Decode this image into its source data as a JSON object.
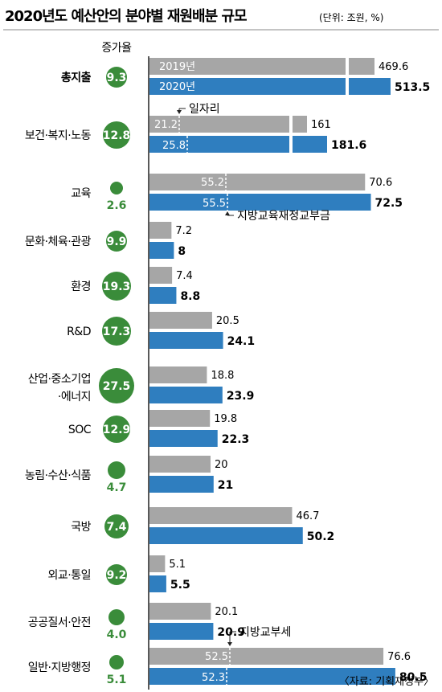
{
  "chart_data": {
    "type": "bar",
    "title": "2020년도 예산안의 분야별 재원배분 규모",
    "unit": "(단위: 조원, %)",
    "rate_header": "증가율",
    "source": "〈자료: 기획재정부〉",
    "colors": {
      "y2019": "#a6a6a6",
      "y2020": "#2f7ebf",
      "rate": "#3a8c3a",
      "rate_text": "#3a8c3a"
    },
    "series": [
      {
        "name": "2019년",
        "values": [
          469.6,
          161,
          70.6,
          7.2,
          7.4,
          20.5,
          18.8,
          19.8,
          20,
          46.7,
          5.1,
          20.1,
          76.6
        ]
      },
      {
        "name": "2020년",
        "values": [
          513.5,
          181.6,
          72.5,
          8,
          8.8,
          24.1,
          23.9,
          22.3,
          21,
          50.2,
          5.5,
          20.9,
          80.5
        ]
      }
    ],
    "categories": [
      {
        "label": "총지출",
        "rate": "9.3"
      },
      {
        "label": "보건·복지·노동",
        "rate": "12.8"
      },
      {
        "label": "교육",
        "rate": "2.6"
      },
      {
        "label": "문화·체육·관광",
        "rate": "9.9"
      },
      {
        "label": "환경",
        "rate": "19.3"
      },
      {
        "label": "R&D",
        "rate": "17.3"
      },
      {
        "label": "산업·중소기업·에너지",
        "label_lines": [
          "산업·중소기업",
          "·에너지"
        ],
        "rate": "27.5"
      },
      {
        "label": "SOC",
        "rate": "12.9"
      },
      {
        "label": "농림·수산·식품",
        "rate": "4.7"
      },
      {
        "label": "국방",
        "rate": "7.4"
      },
      {
        "label": "외교·통일",
        "rate": "9.2"
      },
      {
        "label": "공공질서·안전",
        "rate": "4.0"
      },
      {
        "label": "일반·지방행정",
        "rate": "5.1"
      }
    ],
    "sub_segments": [
      {
        "category": "보건·복지·노동",
        "name": "일자리",
        "y2019": 21.2,
        "y2020": 25.8
      },
      {
        "category": "교육",
        "name": "지방교육재정교부금",
        "y2019": 55.2,
        "y2020": 55.5
      },
      {
        "category": "일반·지방행정",
        "name": "지방교부세",
        "y2019": 52.5,
        "y2020": 52.3
      }
    ],
    "axis_break": {
      "category": "총지출"
    }
  }
}
